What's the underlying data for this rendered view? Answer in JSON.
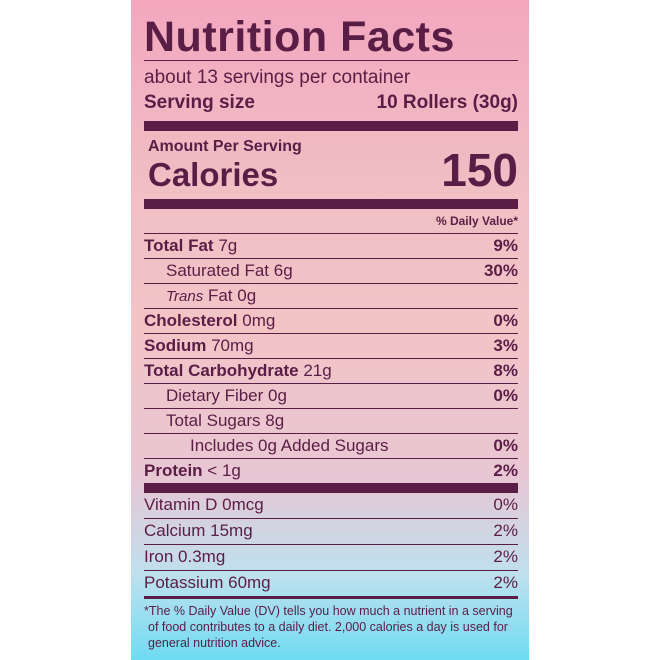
{
  "title": "Nutrition Facts",
  "servings_per_container": "about 13 servings per container",
  "serving_size": {
    "label": "Serving size",
    "value": "10 Rollers (30g)"
  },
  "amount_per_serving": "Amount Per Serving",
  "calories": {
    "label": "Calories",
    "value": "150"
  },
  "dv_header": "% Daily Value*",
  "nutrients": [
    {
      "name": "Total Fat",
      "amount": "7g",
      "dv": "9%",
      "bold": true,
      "indent": 0
    },
    {
      "name": "Saturated Fat",
      "amount": "6g",
      "dv": "30%",
      "bold": false,
      "indent": 1
    },
    {
      "name_italic": "Trans",
      "name": "Fat",
      "amount": "0g",
      "dv": "",
      "bold": false,
      "indent": 1
    },
    {
      "name": "Cholesterol",
      "amount": "0mg",
      "dv": "0%",
      "bold": true,
      "indent": 0
    },
    {
      "name": "Sodium",
      "amount": "70mg",
      "dv": "3%",
      "bold": true,
      "indent": 0
    },
    {
      "name": "Total Carbohydrate",
      "amount": "21g",
      "dv": "8%",
      "bold": true,
      "indent": 0
    },
    {
      "name": "Dietary Fiber",
      "amount": "0g",
      "dv": "0%",
      "bold": false,
      "indent": 1
    },
    {
      "name": "Total Sugars",
      "amount": "8g",
      "dv": "",
      "bold": false,
      "indent": 1
    },
    {
      "name": "Includes 0g Added Sugars",
      "amount": "",
      "dv": "0%",
      "bold": false,
      "indent": 2
    },
    {
      "name": "Protein",
      "amount": "< 1g",
      "dv": "2%",
      "bold": true,
      "indent": 0
    }
  ],
  "vitamins": [
    {
      "name": "Vitamin D",
      "amount": "0mcg",
      "dv": "0%"
    },
    {
      "name": "Calcium",
      "amount": "15mg",
      "dv": "2%"
    },
    {
      "name": "Iron",
      "amount": "0.3mg",
      "dv": "2%"
    },
    {
      "name": "Potassium",
      "amount": "60mg",
      "dv": "2%"
    }
  ],
  "footnote": "*The % Daily Value (DV) tells you how much a nutrient in a serving of food contributes to a daily diet. 2,000 calories a day is used for general nutrition advice.",
  "colors": {
    "text": "#5a1d45",
    "gradient_top": "#f3a7bf",
    "gradient_bottom": "#6fdcf2"
  }
}
